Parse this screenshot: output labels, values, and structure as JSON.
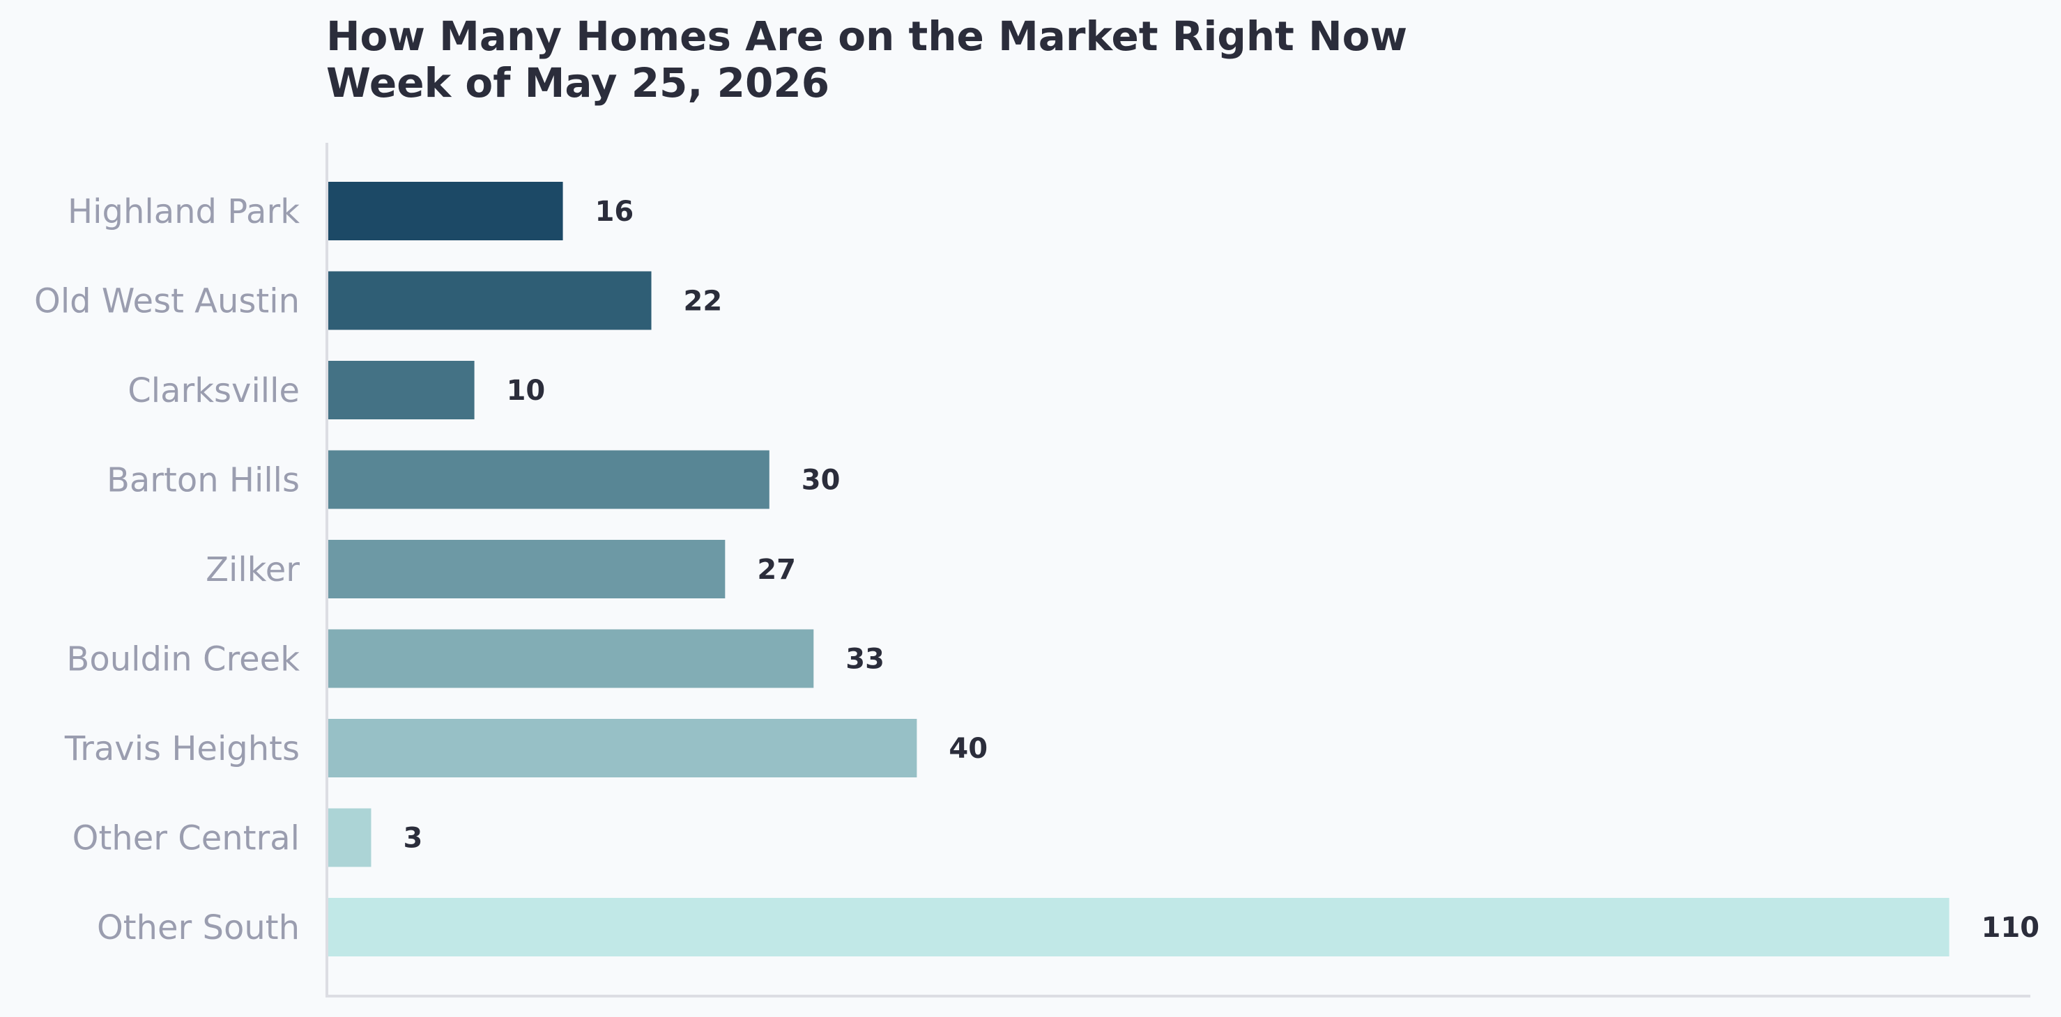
{
  "chart_data": {
    "type": "bar",
    "orientation": "horizontal",
    "title": "How Many Homes Are on the Market Right Now",
    "subtitle": "Week of May 25, 2026",
    "categories": [
      "Highland Park",
      "Old West Austin",
      "Clarksville",
      "Barton Hills",
      "Zilker",
      "Bouldin Creek",
      "Travis Heights",
      "Other Central",
      "Other South"
    ],
    "values": [
      16,
      22,
      10,
      30,
      27,
      33,
      40,
      3,
      110
    ],
    "colors": [
      "#1c4966",
      "#2f5e75",
      "#447285",
      "#588695",
      "#6d99a5",
      "#82adb5",
      "#97c0c6",
      "#acd4d6",
      "#c1e8e7"
    ],
    "xlim": [
      0,
      115.5
    ],
    "data_labels": true,
    "grid": false,
    "legend": "none"
  },
  "colors": {
    "background": "#f8fafc",
    "title": "#2b2d3b",
    "category_label": "#9a9daf",
    "value_label": "#2b2d3b",
    "axis": "#dcdde3"
  }
}
